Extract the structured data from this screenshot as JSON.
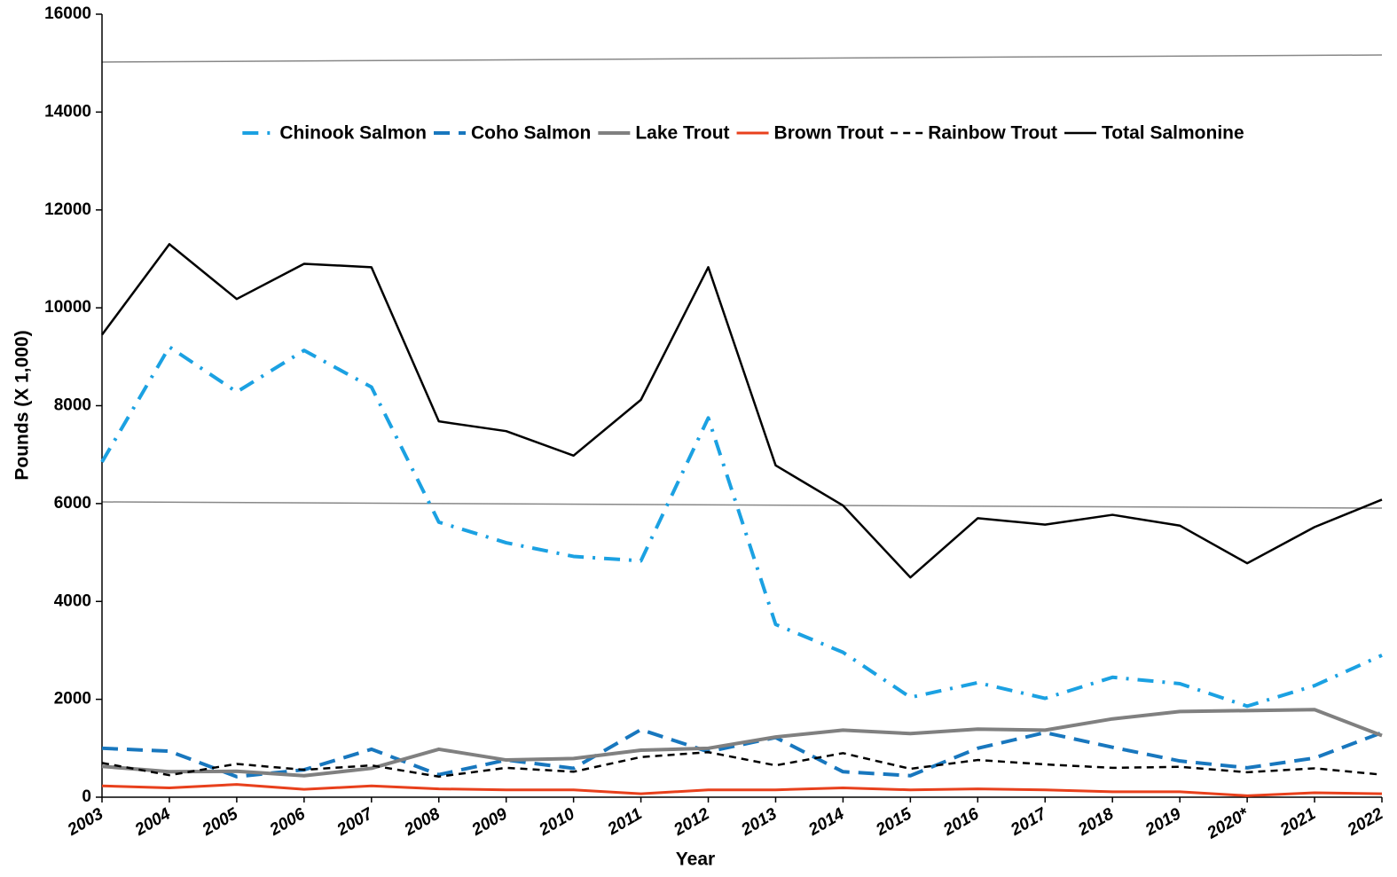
{
  "chart_data": {
    "type": "line",
    "x_label": "Year",
    "y_label": "Pounds (X 1,000)",
    "categories": [
      "2003",
      "2004",
      "2005",
      "2006",
      "2007",
      "2008",
      "2009",
      "2010",
      "2011",
      "2012",
      "2013",
      "2014",
      "2015",
      "2016",
      "2017",
      "2018",
      "2019",
      "2020*",
      "2021",
      "2022"
    ],
    "ylim": [
      0,
      16000
    ],
    "yticks": [
      0,
      2000,
      4000,
      6000,
      8000,
      10000,
      12000,
      14000,
      16000
    ],
    "series": [
      {
        "name": "Chinook Salmon",
        "color": "#1ba1e2",
        "style": "dashdot",
        "width": 4,
        "values": [
          6850,
          9200,
          8280,
          9130,
          8380,
          5620,
          5200,
          4920,
          4830,
          7750,
          3530,
          2960,
          2040,
          2340,
          2020,
          2450,
          2320,
          1860,
          2280,
          2900
        ]
      },
      {
        "name": "Coho Salmon",
        "color": "#1877be",
        "style": "dash",
        "width": 4,
        "values": [
          1000,
          940,
          420,
          560,
          980,
          460,
          760,
          590,
          1380,
          930,
          1220,
          520,
          440,
          1000,
          1320,
          1020,
          740,
          600,
          800,
          1320
        ]
      },
      {
        "name": "Lake Trout",
        "color": "#808080",
        "style": "solid",
        "width": 4,
        "values": [
          630,
          520,
          530,
          440,
          590,
          980,
          760,
          790,
          960,
          1000,
          1230,
          1370,
          1300,
          1390,
          1370,
          1600,
          1750,
          1770,
          1790,
          1260
        ]
      },
      {
        "name": "Brown Trout",
        "color": "#e8401c",
        "style": "solid",
        "width": 3,
        "values": [
          230,
          190,
          260,
          160,
          230,
          170,
          150,
          150,
          70,
          150,
          150,
          190,
          150,
          170,
          150,
          110,
          110,
          30,
          90,
          70
        ]
      },
      {
        "name": "Rainbow Trout",
        "color": "#000000",
        "style": "shortdash",
        "width": 2.5,
        "values": [
          700,
          450,
          680,
          560,
          650,
          420,
          600,
          520,
          820,
          920,
          650,
          900,
          580,
          760,
          670,
          600,
          620,
          510,
          590,
          460
        ]
      },
      {
        "name": "Total Salmonine",
        "color": "#000000",
        "style": "solid",
        "width": 2.5,
        "values": [
          9450,
          11300,
          10180,
          10900,
          10830,
          7680,
          7480,
          6980,
          8120,
          10830,
          6780,
          5960,
          4490,
          5700,
          5570,
          5770,
          5550,
          4780,
          5520,
          6080
        ]
      }
    ]
  }
}
